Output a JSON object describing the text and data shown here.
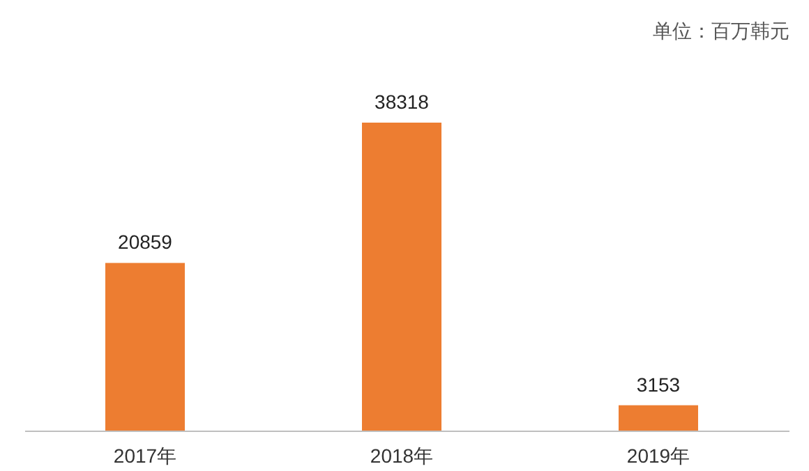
{
  "chart_data": {
    "type": "bar",
    "categories": [
      "2017年",
      "2018年",
      "2019年"
    ],
    "values": [
      20859,
      38318,
      3153
    ],
    "color": "#ed7d31",
    "data_labels": true,
    "annotations": [
      "单位：百万韩元"
    ]
  }
}
